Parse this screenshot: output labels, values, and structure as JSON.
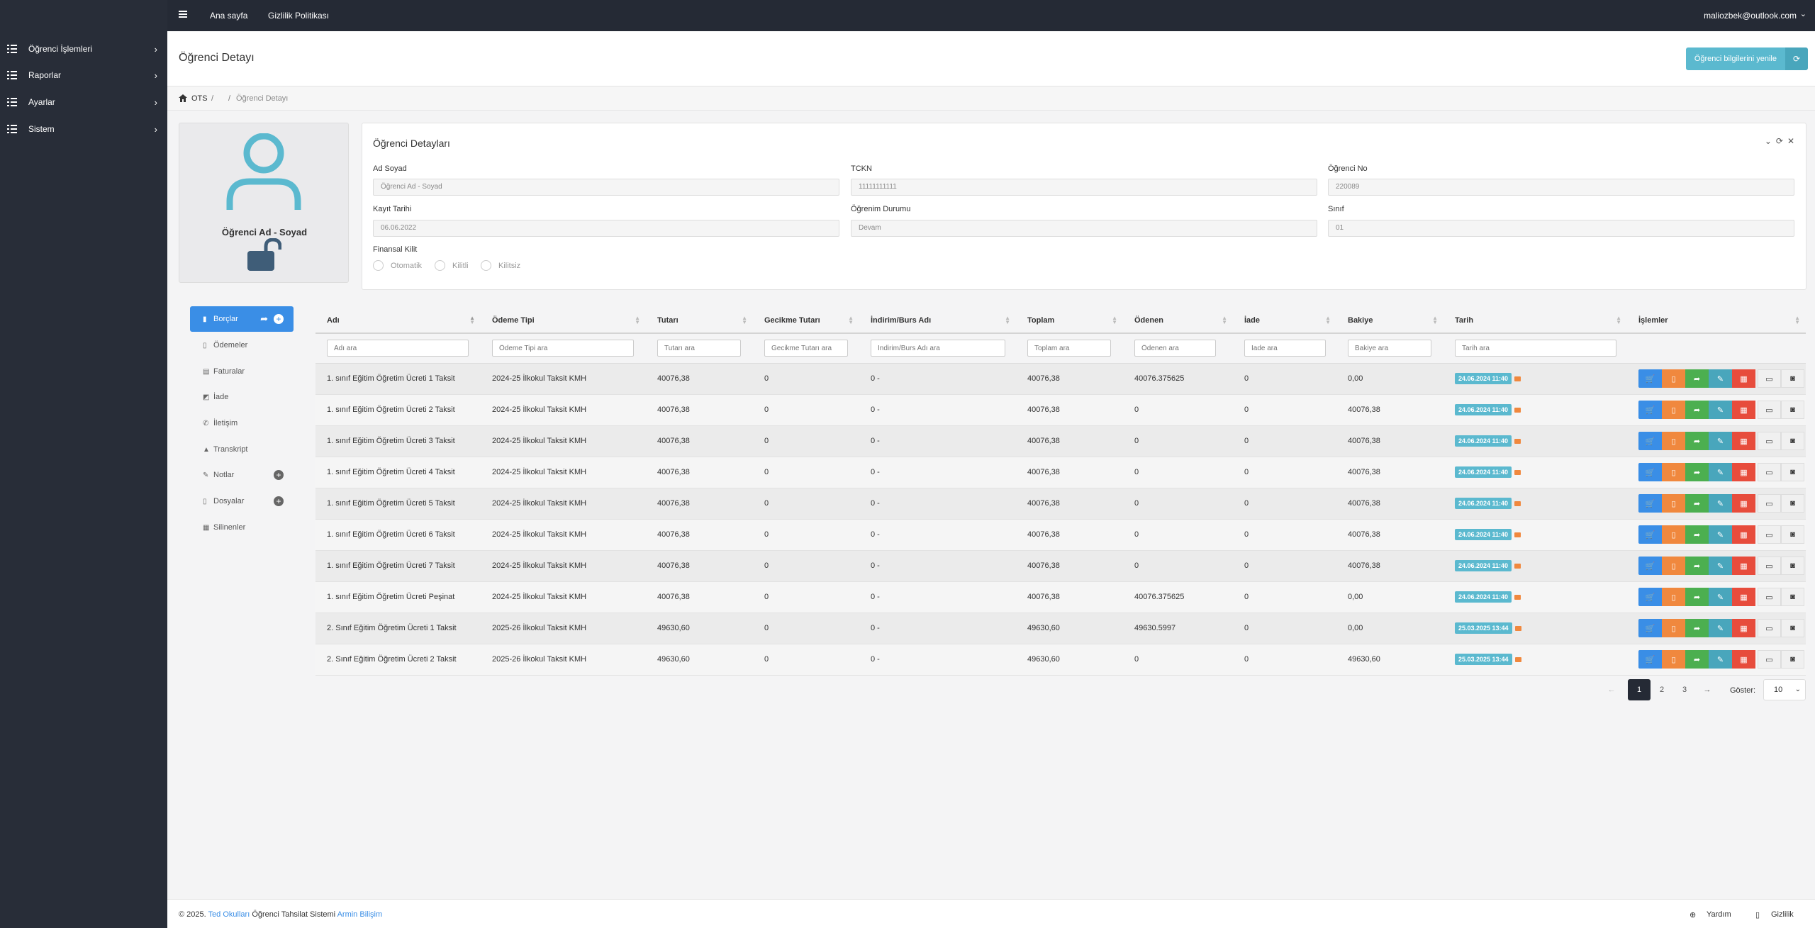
{
  "sidebar": {
    "items": [
      {
        "label": "Öğrenci İşlemleri"
      },
      {
        "label": "Raporlar"
      },
      {
        "label": "Ayarlar"
      },
      {
        "label": "Sistem"
      }
    ]
  },
  "topbar": {
    "home": "Ana sayfa",
    "privacy": "Gizlilik Politikası",
    "user": "maliozbek@outlook.com"
  },
  "page": {
    "title": "Öğrenci Detayı",
    "refresh_label": "Öğrenci bilgilerini yenile"
  },
  "breadcrumb": {
    "root": "OTS",
    "sep1": "/",
    "sep2": "/",
    "current": "Öğrenci Detayı"
  },
  "profile": {
    "name": "Öğrenci Ad - Soyad"
  },
  "details": {
    "title": "Öğrenci Detayları",
    "fields": {
      "name": {
        "label": "Ad Soyad",
        "value": "Öğrenci Ad - Soyad"
      },
      "tckn": {
        "label": "TCKN",
        "value": "11111111111"
      },
      "no": {
        "label": "Öğrenci No",
        "value": "220089"
      },
      "reg": {
        "label": "Kayıt Tarihi",
        "value": "06.06.2022"
      },
      "status": {
        "label": "Öğrenim Durumu",
        "value": "Devam"
      },
      "class": {
        "label": "Sınıf",
        "value": "01"
      }
    },
    "lock": {
      "label": "Finansal Kilit",
      "options": [
        "Otomatik",
        "Kilitli",
        "Kilitsiz"
      ]
    }
  },
  "tabs": [
    {
      "label": "Borçlar"
    },
    {
      "label": "Ödemeler"
    },
    {
      "label": "Faturalar"
    },
    {
      "label": "İade"
    },
    {
      "label": "İletişim"
    },
    {
      "label": "Transkript"
    },
    {
      "label": "Notlar"
    },
    {
      "label": "Dosyalar"
    },
    {
      "label": "Silinenler"
    }
  ],
  "table": {
    "headers": [
      "Adı",
      "Ödeme Tipi",
      "Tutarı",
      "Gecikme Tutarı",
      "İndirim/Burs Adı",
      "Toplam",
      "Ödenen",
      "İade",
      "Bakiye",
      "Tarih",
      "İşlemler"
    ],
    "filters": [
      "Adı ara",
      "Ödeme Tipi ara",
      "Tutarı ara",
      "Gecikme Tutarı ara",
      "İndirim/Burs Adı ara",
      "Toplam ara",
      "Ödenen ara",
      "İade ara",
      "Bakiye ara",
      "Tarih ara"
    ],
    "rows": [
      {
        "ad": "1. sınıf Eğitim Öğretim Ücreti 1 Taksit",
        "tip": "2024-25 İlkokul Taksit KMH",
        "tutar": "40076,38",
        "gecikme": "0",
        "indirim": "0 -",
        "toplam": "40076,38",
        "odenen": "40076.375625",
        "iade": "0",
        "bakiye": "0,00",
        "tarih": "24.06.2024 11:40"
      },
      {
        "ad": "1. sınıf Eğitim Öğretim Ücreti 2 Taksit",
        "tip": "2024-25 İlkokul Taksit KMH",
        "tutar": "40076,38",
        "gecikme": "0",
        "indirim": "0 -",
        "toplam": "40076,38",
        "odenen": "0",
        "iade": "0",
        "bakiye": "40076,38",
        "tarih": "24.06.2024 11:40"
      },
      {
        "ad": "1. sınıf Eğitim Öğretim Ücreti 3 Taksit",
        "tip": "2024-25 İlkokul Taksit KMH",
        "tutar": "40076,38",
        "gecikme": "0",
        "indirim": "0 -",
        "toplam": "40076,38",
        "odenen": "0",
        "iade": "0",
        "bakiye": "40076,38",
        "tarih": "24.06.2024 11:40"
      },
      {
        "ad": "1. sınıf Eğitim Öğretim Ücreti 4 Taksit",
        "tip": "2024-25 İlkokul Taksit KMH",
        "tutar": "40076,38",
        "gecikme": "0",
        "indirim": "0 -",
        "toplam": "40076,38",
        "odenen": "0",
        "iade": "0",
        "bakiye": "40076,38",
        "tarih": "24.06.2024 11:40"
      },
      {
        "ad": "1. sınıf Eğitim Öğretim Ücreti 5 Taksit",
        "tip": "2024-25 İlkokul Taksit KMH",
        "tutar": "40076,38",
        "gecikme": "0",
        "indirim": "0 -",
        "toplam": "40076,38",
        "odenen": "0",
        "iade": "0",
        "bakiye": "40076,38",
        "tarih": "24.06.2024 11:40"
      },
      {
        "ad": "1. sınıf Eğitim Öğretim Ücreti 6 Taksit",
        "tip": "2024-25 İlkokul Taksit KMH",
        "tutar": "40076,38",
        "gecikme": "0",
        "indirim": "0 -",
        "toplam": "40076,38",
        "odenen": "0",
        "iade": "0",
        "bakiye": "40076,38",
        "tarih": "24.06.2024 11:40"
      },
      {
        "ad": "1. sınıf Eğitim Öğretim Ücreti 7 Taksit",
        "tip": "2024-25 İlkokul Taksit KMH",
        "tutar": "40076,38",
        "gecikme": "0",
        "indirim": "0 -",
        "toplam": "40076,38",
        "odenen": "0",
        "iade": "0",
        "bakiye": "40076,38",
        "tarih": "24.06.2024 11:40"
      },
      {
        "ad": "1. sınıf Eğitim Öğretim Ücreti Peşinat",
        "tip": "2024-25 İlkokul Taksit KMH",
        "tutar": "40076,38",
        "gecikme": "0",
        "indirim": "0 -",
        "toplam": "40076,38",
        "odenen": "40076.375625",
        "iade": "0",
        "bakiye": "0,00",
        "tarih": "24.06.2024 11:40"
      },
      {
        "ad": "2. Sınıf Eğitim Öğretim Ücreti 1 Taksit",
        "tip": "2025-26 İlkokul Taksit KMH",
        "tutar": "49630,60",
        "gecikme": "0",
        "indirim": "0 -",
        "toplam": "49630,60",
        "odenen": "49630.5997",
        "iade": "0",
        "bakiye": "0,00",
        "tarih": "25.03.2025 13:44"
      },
      {
        "ad": "2. Sınıf Eğitim Öğretim Ücreti 2 Taksit",
        "tip": "2025-26 İlkokul Taksit KMH",
        "tutar": "49630,60",
        "gecikme": "0",
        "indirim": "0 -",
        "toplam": "49630,60",
        "odenen": "0",
        "iade": "0",
        "bakiye": "49630,60",
        "tarih": "25.03.2025 13:44"
      }
    ]
  },
  "pagination": {
    "prev": "←",
    "pages": [
      "1",
      "2",
      "3"
    ],
    "next": "→",
    "show_label": "Göster:",
    "show_value": "10"
  },
  "footer": {
    "prefix": "© 2025.",
    "org": "Ted Okulları",
    "system": "Öğrenci Tahsilat Sistemi",
    "company": "Armin Bilişim",
    "help": "Yardım",
    "privacy": "Gizlilik"
  },
  "colors": {
    "sidebar": "#282d38",
    "accent": "#3a8ee6",
    "info": "#5bb9cf",
    "success": "#4caf50",
    "danger": "#e74c3c",
    "warning": "#f0883e"
  }
}
